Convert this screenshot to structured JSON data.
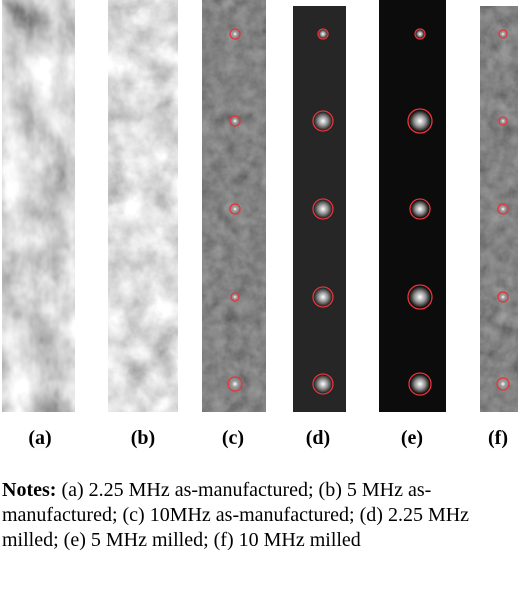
{
  "panels": [
    {
      "label": "(a)"
    },
    {
      "label": "(b)"
    },
    {
      "label": "(c)"
    },
    {
      "label": "(d)"
    },
    {
      "label": "(e)"
    },
    {
      "label": "(f)"
    }
  ],
  "notes": {
    "heading": "Notes:",
    "text": "(a) 2.25 MHz as-manufactured; (b) 5 MHz as-manufactured; (c) 10MHz as-manufactured; (d) 2.25 MHz milled; (e) 5 MHz milled; (f) 10 MHz milled"
  }
}
